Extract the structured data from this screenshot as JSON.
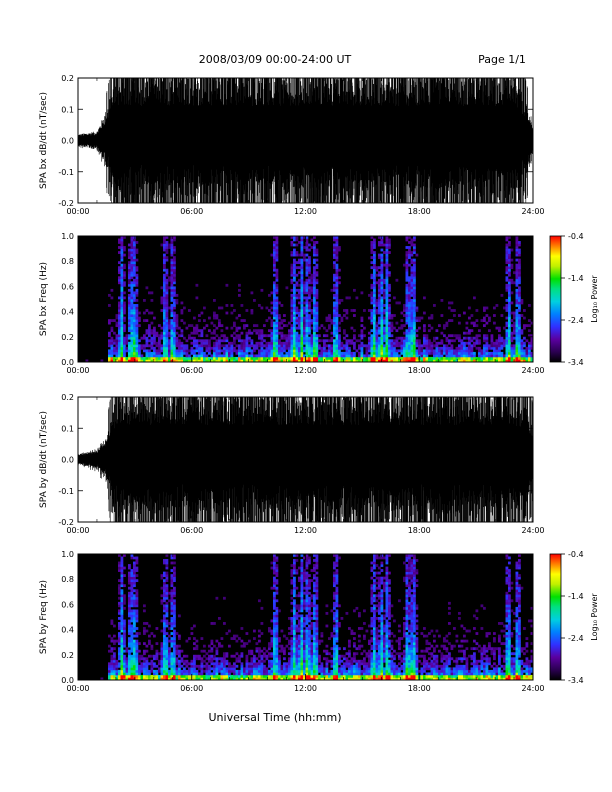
{
  "header": {
    "title": "2008/03/09   00:00-24:00 UT",
    "page": "Page 1/1"
  },
  "footer": {
    "xlabel": "Universal Time (hh:mm)"
  },
  "chart_data": [
    {
      "type": "line",
      "panel": "bx-waveform",
      "ylabel": "SPA bx dB/dt (nT/sec)",
      "ylim": [
        -0.2,
        0.2
      ],
      "yticks": [
        "-0.2",
        "-0.1",
        "0.0",
        "0.1",
        "0.2"
      ],
      "xticks": [
        "00:00",
        "06:00",
        "12:00",
        "18:00",
        "24:00"
      ],
      "x_hours": [
        0,
        0.5,
        1,
        1.5,
        2,
        3,
        4,
        6,
        8,
        10,
        12,
        14,
        16,
        18,
        20,
        22,
        23,
        23.5,
        24
      ],
      "envelope": [
        0.02,
        0.025,
        0.03,
        0.1,
        0.2,
        0.2,
        0.2,
        0.2,
        0.2,
        0.2,
        0.2,
        0.2,
        0.2,
        0.2,
        0.2,
        0.2,
        0.2,
        0.15,
        0.06
      ],
      "color": "#000000"
    },
    {
      "type": "heatmap",
      "panel": "bx-spectrogram",
      "ylabel": "SPA bx Freq (Hz)",
      "ylim": [
        0.0,
        1.0
      ],
      "yticks": [
        "0.0",
        "0.2",
        "0.4",
        "0.6",
        "0.8",
        "1.0"
      ],
      "xticks": [
        "00:00",
        "06:00",
        "12:00",
        "18:00",
        "24:00"
      ],
      "colorbar": {
        "label": "Log₁₀ Power",
        "ticks": [
          "-3.4",
          "-2.4",
          "-1.4",
          "-0.4"
        ],
        "range": [
          -3.4,
          -0.4
        ]
      },
      "bright_columns_hours": [
        2.3,
        2.8,
        3.0,
        4.6,
        5.0,
        10.4,
        11.4,
        11.8,
        12.1,
        12.5,
        13.6,
        15.6,
        16.0,
        16.3,
        17.4,
        17.7,
        22.7,
        23.2
      ]
    },
    {
      "type": "line",
      "panel": "by-waveform",
      "ylabel": "SPA by dB/dt (nT/sec)",
      "ylim": [
        -0.2,
        0.2
      ],
      "yticks": [
        "-0.2",
        "-0.1",
        "0.0",
        "0.1",
        "0.2"
      ],
      "xticks": [
        "00:00",
        "06:00",
        "12:00",
        "18:00",
        "24:00"
      ],
      "x_hours": [
        0,
        0.5,
        1,
        1.5,
        2,
        3,
        4,
        6,
        8,
        10,
        12,
        14,
        16,
        18,
        20,
        22,
        23,
        23.5,
        24
      ],
      "envelope": [
        0.02,
        0.025,
        0.035,
        0.08,
        0.2,
        0.2,
        0.2,
        0.2,
        0.2,
        0.2,
        0.2,
        0.2,
        0.2,
        0.2,
        0.2,
        0.2,
        0.2,
        0.18,
        0.12
      ],
      "color": "#000000"
    },
    {
      "type": "heatmap",
      "panel": "by-spectrogram",
      "ylabel": "SPA by Freq (Hz)",
      "ylim": [
        0.0,
        1.0
      ],
      "yticks": [
        "0.0",
        "0.2",
        "0.4",
        "0.6",
        "0.8",
        "1.0"
      ],
      "xticks": [
        "00:00",
        "06:00",
        "12:00",
        "18:00",
        "24:00"
      ],
      "colorbar": {
        "label": "Log₁₀ Power",
        "ticks": [
          "-3.4",
          "-2.4",
          "-1.4",
          "-0.4"
        ],
        "range": [
          -3.4,
          -0.4
        ]
      },
      "bright_columns_hours": [
        2.3,
        2.8,
        3.0,
        4.6,
        5.0,
        10.4,
        11.4,
        11.8,
        12.1,
        12.5,
        13.6,
        15.6,
        16.0,
        16.3,
        17.4,
        17.7,
        22.7,
        23.2
      ]
    }
  ]
}
